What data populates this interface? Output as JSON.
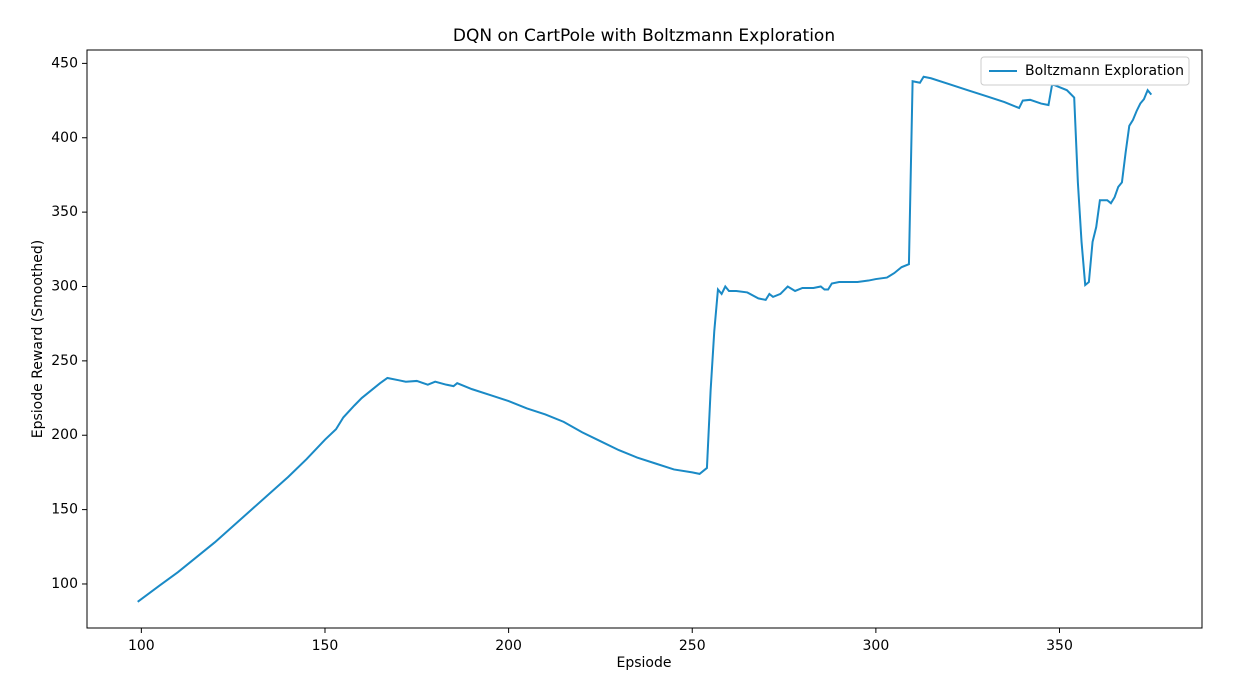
{
  "chart_data": {
    "type": "line",
    "title": "DQN on CartPole with Boltzmann Exploration",
    "xlabel": "Epsiode",
    "ylabel": "Epsiode Reward (Smoothed)",
    "x": [
      99,
      105,
      110,
      115,
      120,
      125,
      130,
      135,
      140,
      145,
      150,
      153,
      155,
      158,
      160,
      165,
      167,
      170,
      172,
      175,
      178,
      180,
      183,
      185,
      186,
      190,
      195,
      200,
      205,
      210,
      215,
      220,
      225,
      230,
      235,
      240,
      245,
      250,
      252,
      254,
      255,
      256,
      257,
      258,
      259,
      260,
      262,
      265,
      268,
      270,
      271,
      272,
      274,
      276,
      278,
      280,
      283,
      285,
      286,
      287,
      288,
      290,
      295,
      298,
      300,
      303,
      305,
      307,
      309,
      310,
      312,
      313,
      315,
      320,
      325,
      330,
      335,
      339,
      340,
      342,
      345,
      347,
      348,
      350,
      352,
      354,
      355,
      356,
      357,
      358,
      359,
      360,
      361,
      363,
      364,
      365,
      366,
      367,
      368,
      369,
      370,
      371,
      372,
      373,
      374,
      375
    ],
    "series": [
      {
        "name": "Boltzmann Exploration",
        "color": "#1a8ac6",
        "values": [
          88,
          99,
          108,
          118,
          128,
          139,
          150,
          161,
          172,
          184,
          197,
          204,
          212,
          220,
          225,
          235,
          238.5,
          237,
          236,
          236.5,
          234,
          236,
          234,
          233,
          235,
          231,
          227,
          223,
          218,
          214,
          209,
          202,
          196,
          190,
          185,
          181,
          177,
          175,
          174,
          178,
          230,
          270,
          298,
          295,
          300,
          297,
          297,
          296,
          292,
          291,
          295,
          293,
          295,
          300,
          297,
          299,
          299,
          300,
          298,
          298,
          302,
          303,
          303,
          304,
          305,
          306,
          309,
          313,
          315,
          438,
          437,
          441,
          440,
          436,
          432,
          428,
          424,
          420,
          425,
          425.5,
          423,
          422,
          436,
          434,
          432,
          427,
          370,
          330,
          301,
          303,
          330,
          340,
          358,
          358,
          356,
          360,
          367,
          370,
          390,
          408,
          412,
          418,
          423,
          426,
          432,
          429
        ]
      }
    ],
    "xlim": [
      85.2,
      388.8
    ],
    "ylim": [
      70.4,
      459.0
    ],
    "xticks": [
      100,
      150,
      200,
      250,
      300,
      350
    ],
    "yticks": [
      100,
      150,
      200,
      250,
      300,
      350,
      400,
      450
    ],
    "legend": "upper right",
    "grid": false
  }
}
